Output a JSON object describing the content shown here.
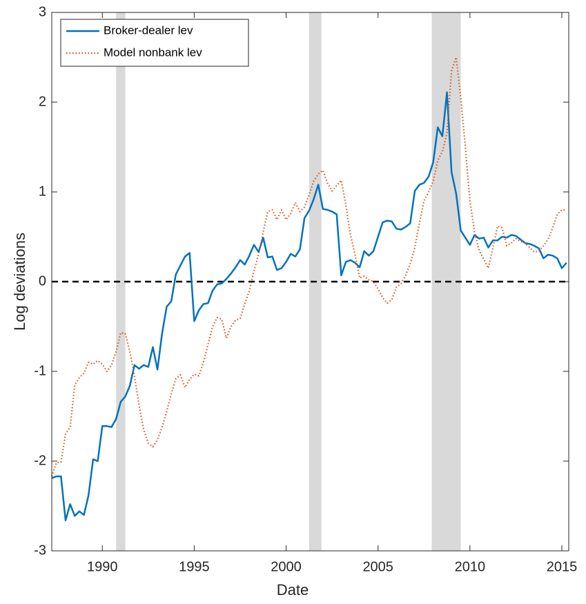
{
  "chart_data": {
    "type": "line",
    "xlabel": "Date",
    "ylabel": "Log deviations",
    "xlim": [
      1987.25,
      2015.375
    ],
    "ylim": [
      -3,
      3
    ],
    "xticks": [
      1990,
      1995,
      2000,
      2005,
      2010,
      2015
    ],
    "yticks": [
      -3,
      -2,
      -1,
      0,
      1,
      2,
      3
    ],
    "reference_line": 0,
    "shaded_regions": [
      [
        1990.75,
        1991.25
      ],
      [
        2001.25,
        2001.92
      ],
      [
        2007.92,
        2009.5
      ]
    ],
    "legend": "upper-left",
    "x": [
      1987.25,
      1987.5,
      1987.75,
      1988,
      1988.25,
      1988.5,
      1988.75,
      1989,
      1989.25,
      1989.5,
      1989.75,
      1990,
      1990.25,
      1990.5,
      1990.75,
      1991,
      1991.25,
      1991.5,
      1991.75,
      1992,
      1992.25,
      1992.5,
      1992.75,
      1993,
      1993.25,
      1993.5,
      1993.75,
      1994,
      1994.25,
      1994.5,
      1994.75,
      1995,
      1995.25,
      1995.5,
      1995.75,
      1996,
      1996.25,
      1996.5,
      1996.75,
      1997,
      1997.25,
      1997.5,
      1997.75,
      1998,
      1998.25,
      1998.5,
      1998.75,
      1999,
      1999.25,
      1999.5,
      1999.75,
      2000,
      2000.25,
      2000.5,
      2000.75,
      2001,
      2001.25,
      2001.5,
      2001.75,
      2002,
      2002.25,
      2002.5,
      2002.75,
      2003,
      2003.25,
      2003.5,
      2003.75,
      2004,
      2004.25,
      2004.5,
      2004.75,
      2005,
      2005.25,
      2005.5,
      2005.75,
      2006,
      2006.25,
      2006.5,
      2006.75,
      2007,
      2007.25,
      2007.5,
      2007.75,
      2008,
      2008.25,
      2008.5,
      2008.75,
      2009,
      2009.25,
      2009.5,
      2009.75,
      2010,
      2010.25,
      2010.5,
      2010.75,
      2011,
      2011.25,
      2011.5,
      2011.75,
      2012,
      2012.25,
      2012.5,
      2012.75,
      2013,
      2013.25,
      2013.5,
      2013.75,
      2014,
      2014.25,
      2014.5,
      2014.75,
      2015,
      2015.25
    ],
    "series": [
      {
        "name": "Broker-dealer lev",
        "color": "#0072bd",
        "style": "solid",
        "values": [
          -2.19,
          -2.17,
          -2.17,
          -2.66,
          -2.48,
          -2.61,
          -2.56,
          -2.6,
          -2.38,
          -1.98,
          -2.0,
          -1.61,
          -1.61,
          -1.62,
          -1.53,
          -1.34,
          -1.28,
          -1.16,
          -0.93,
          -0.97,
          -0.93,
          -0.95,
          -0.73,
          -0.98,
          -0.58,
          -0.28,
          -0.22,
          0.08,
          0.18,
          0.28,
          0.32,
          -0.44,
          -0.32,
          -0.25,
          -0.24,
          -0.1,
          -0.03,
          -0.02,
          0.03,
          0.09,
          0.16,
          0.24,
          0.19,
          0.29,
          0.41,
          0.33,
          0.49,
          0.27,
          0.28,
          0.13,
          0.15,
          0.22,
          0.31,
          0.28,
          0.36,
          0.71,
          0.79,
          0.92,
          1.08,
          0.81,
          0.8,
          0.78,
          0.75,
          0.07,
          0.22,
          0.24,
          0.21,
          0.16,
          0.34,
          0.29,
          0.34,
          0.5,
          0.66,
          0.68,
          0.67,
          0.59,
          0.58,
          0.61,
          0.65,
          1.01,
          1.08,
          1.1,
          1.17,
          1.33,
          1.72,
          1.62,
          2.11,
          1.22,
          0.98,
          0.57,
          0.49,
          0.41,
          0.52,
          0.48,
          0.49,
          0.38,
          0.46,
          0.46,
          0.5,
          0.49,
          0.52,
          0.51,
          0.47,
          0.43,
          0.42,
          0.4,
          0.37,
          0.26,
          0.3,
          0.29,
          0.26,
          0.15,
          0.21
        ]
      },
      {
        "name": "Model nonbank lev",
        "color": "#d95319",
        "style": "dotted",
        "values": [
          -2.17,
          -2.02,
          -2.01,
          -1.7,
          -1.62,
          -1.15,
          -1.07,
          -1.02,
          -0.9,
          -0.92,
          -0.88,
          -0.92,
          -1.0,
          -0.93,
          -0.78,
          -0.57,
          -0.58,
          -0.78,
          -1.05,
          -1.38,
          -1.65,
          -1.8,
          -1.84,
          -1.76,
          -1.62,
          -1.45,
          -1.25,
          -1.08,
          -1.04,
          -1.18,
          -1.09,
          -1.03,
          -1.05,
          -0.9,
          -0.7,
          -0.5,
          -0.4,
          -0.42,
          -0.63,
          -0.5,
          -0.43,
          -0.41,
          -0.25,
          -0.1,
          0.12,
          0.3,
          0.55,
          0.78,
          0.8,
          0.69,
          0.8,
          0.69,
          0.76,
          0.88,
          0.78,
          0.83,
          0.97,
          1.12,
          1.2,
          1.24,
          1.1,
          1.01,
          1.07,
          1.13,
          0.85,
          0.52,
          0.3,
          0.04,
          0.06,
          0.02,
          0.0,
          -0.08,
          -0.18,
          -0.24,
          -0.2,
          -0.06,
          -0.02,
          0.07,
          0.2,
          0.38,
          0.65,
          0.9,
          1.0,
          1.12,
          1.35,
          1.45,
          1.65,
          2.35,
          2.5,
          2.05,
          1.5,
          0.9,
          0.55,
          0.35,
          0.25,
          0.15,
          0.38,
          0.62,
          0.6,
          0.4,
          0.43,
          0.48,
          0.45,
          0.43,
          0.38,
          0.33,
          0.34,
          0.4,
          0.47,
          0.6,
          0.75,
          0.8,
          0.8
        ]
      }
    ]
  }
}
